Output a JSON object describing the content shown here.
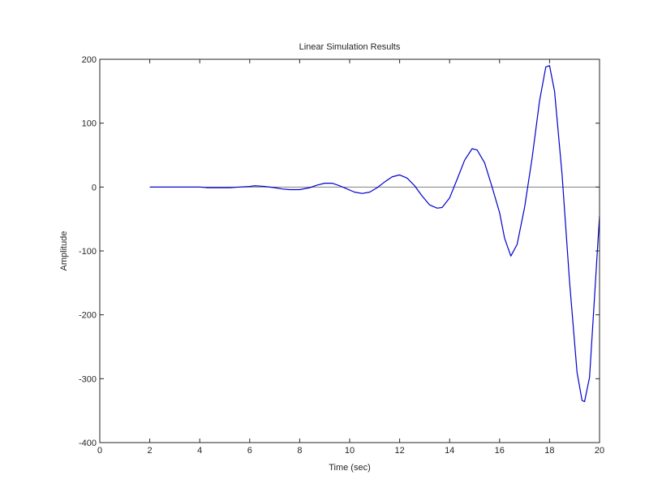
{
  "chart_data": {
    "type": "line",
    "title": "Linear Simulation Results",
    "xlabel": "Time (sec)",
    "ylabel": "Amplitude",
    "xlim": [
      0,
      20
    ],
    "ylim": [
      -400,
      200
    ],
    "x_ticks": [
      "0",
      "2",
      "4",
      "6",
      "8",
      "10",
      "12",
      "14",
      "16",
      "18",
      "20"
    ],
    "y_ticks": [
      "-400",
      "-300",
      "-200",
      "-100",
      "0",
      "100",
      "200"
    ],
    "grid": false,
    "legend": "none",
    "series": [
      {
        "color": "#0000cc",
        "x": [
          2,
          2.5,
          3,
          3.5,
          4,
          4.3,
          4.8,
          5.2,
          5.6,
          6.0,
          6.2,
          6.6,
          7.0,
          7.3,
          7.6,
          8.0,
          8.4,
          8.7,
          9.0,
          9.3,
          9.6,
          9.9,
          10.2,
          10.5,
          10.8,
          11.1,
          11.4,
          11.7,
          12.0,
          12.3,
          12.6,
          12.9,
          13.2,
          13.5,
          13.7,
          14.0,
          14.3,
          14.6,
          14.9,
          15.1,
          15.4,
          15.7,
          16.0,
          16.2,
          16.45,
          16.7,
          17.0,
          17.3,
          17.6,
          17.85,
          18.0,
          18.2,
          18.5,
          18.8,
          19.1,
          19.3,
          19.4,
          19.6,
          19.8,
          20.0
        ],
        "y": [
          0,
          0,
          0,
          0,
          0,
          -1,
          -1,
          -1,
          0,
          1,
          2,
          1,
          -1,
          -3,
          -4,
          -4,
          -1,
          3,
          6,
          6,
          2,
          -3,
          -8,
          -10,
          -8,
          -1,
          8,
          16,
          19,
          14,
          2,
          -14,
          -28,
          -33,
          -32,
          -17,
          12,
          42,
          60,
          58,
          38,
          0,
          -40,
          -80,
          -108,
          -90,
          -32,
          45,
          135,
          188,
          190,
          150,
          20,
          -148,
          -290,
          -334,
          -336,
          -298,
          -172,
          -45
        ]
      },
      {
        "color": "#7f7f7f",
        "x": [
          2,
          20
        ],
        "y": [
          0,
          0
        ]
      }
    ]
  }
}
